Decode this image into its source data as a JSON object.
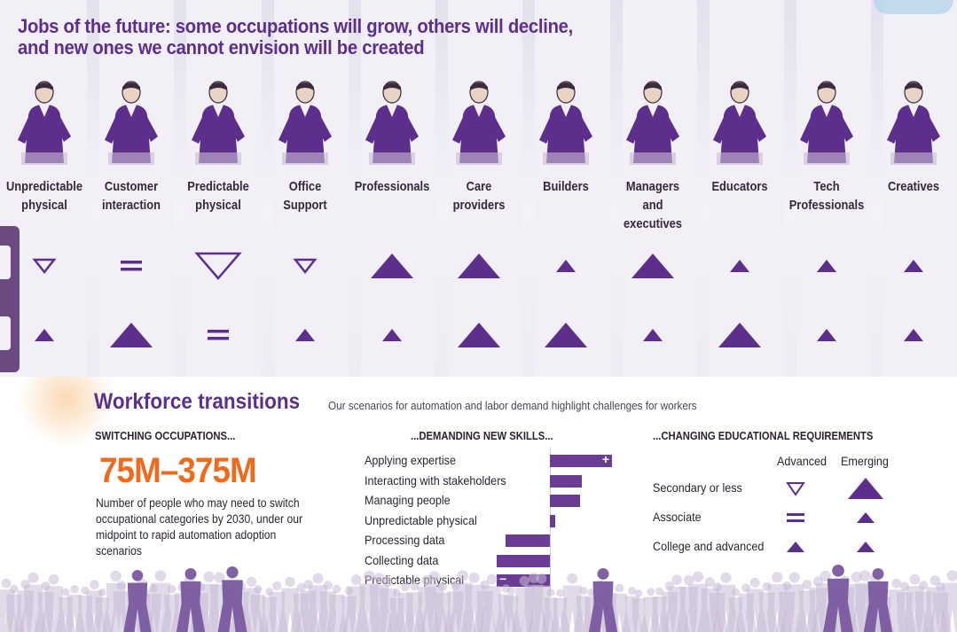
{
  "top": {
    "title_line1": "Jobs of the future: some occupations will grow, others will decline,",
    "title_line2": "and new ones we cannot envision will be created",
    "occupations": [
      {
        "label": "Unpredictable physical",
        "row1": "down-small",
        "row2": "up-small"
      },
      {
        "label": "Customer interaction",
        "row1": "equal",
        "row2": "up-large"
      },
      {
        "label": "Predictable physical",
        "row1": "down-large",
        "row2": "equal"
      },
      {
        "label": "Office Support",
        "row1": "down-small",
        "row2": "up-small"
      },
      {
        "label": "Professionals",
        "row1": "up-large",
        "row2": "up-small"
      },
      {
        "label": "Care providers",
        "row1": "up-large",
        "row2": "up-large"
      },
      {
        "label": "Builders",
        "row1": "up-small",
        "row2": "up-large"
      },
      {
        "label": "Managers and executives",
        "row1": "up-large",
        "row2": "up-small"
      },
      {
        "label": "Educators",
        "row1": "up-small",
        "row2": "up-large"
      },
      {
        "label": "Tech Professionals",
        "row1": "up-small",
        "row2": "up-small"
      },
      {
        "label": "Creatives",
        "row1": "up-small",
        "row2": "up-small"
      }
    ]
  },
  "bottom": {
    "heading": "Workforce transitions",
    "subheading": "Our scenarios for automation and labor demand highlight challenges for workers",
    "col1": {
      "header": "SWITCHING OCCUPATIONS...",
      "big_number": "75M–375M",
      "description": "Number of people who may need to switch occupational categories by 2030, under our midpoint to rapid automation adoption scenarios"
    },
    "col2": {
      "header": "...DEMANDING NEW SKILLS...",
      "skills": [
        {
          "label": "Applying expertise",
          "change": 70,
          "marker": "+"
        },
        {
          "label": "Interacting with stakeholders",
          "change": 36,
          "marker": ""
        },
        {
          "label": "Managing people",
          "change": 34,
          "marker": ""
        },
        {
          "label": "Unpredictable physical",
          "change": 6,
          "marker": ""
        },
        {
          "label": "Processing data",
          "change": -50,
          "marker": ""
        },
        {
          "label": "Collecting data",
          "change": -60,
          "marker": ""
        },
        {
          "label": "Predictable physical",
          "change": -60,
          "marker": "−"
        }
      ]
    },
    "col3": {
      "header": "...CHANGING EDUCATIONAL REQUIREMENTS",
      "col_advanced": "Advanced",
      "col_emerging": "Emerging",
      "rows": [
        {
          "label": "Secondary or less",
          "advanced": "down-small",
          "emerging": "up-large"
        },
        {
          "label": "Associate",
          "advanced": "equal",
          "emerging": "up-small"
        },
        {
          "label": "College and advanced",
          "advanced": "up-small",
          "emerging": "up-small"
        }
      ]
    }
  },
  "colors": {
    "purple": "#5c2f8c",
    "bar_purple": "#6a3c94",
    "orange": "#ee6a1c",
    "crowd": "#c9bcd6",
    "crowd_dark": "#7a5aa0"
  }
}
